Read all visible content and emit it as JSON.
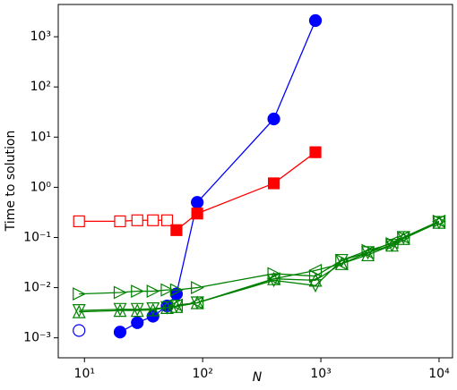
{
  "chart_data": {
    "type": "scatter-line",
    "xlabel": "N",
    "ylabel": "Time to solution",
    "xscale": "log",
    "yscale": "log",
    "xlim": [
      6,
      13000
    ],
    "ylim": [
      0.0004,
      4400
    ],
    "xticks": [
      {
        "value": 10,
        "label": "10¹"
      },
      {
        "value": 100,
        "label": "10²"
      },
      {
        "value": 1000,
        "label": "10³"
      },
      {
        "value": 10000,
        "label": "10⁴"
      }
    ],
    "yticks": [
      {
        "value": 0.001,
        "label": "10⁻³"
      },
      {
        "value": 0.01,
        "label": "10⁻²"
      },
      {
        "value": 0.1,
        "label": "10⁻¹"
      },
      {
        "value": 1,
        "label": "10⁰"
      },
      {
        "value": 10,
        "label": "10¹"
      },
      {
        "value": 100,
        "label": "10²"
      },
      {
        "value": 1000,
        "label": "10³"
      }
    ],
    "series": [
      {
        "color": "#0000ff",
        "marker": "o",
        "filled": false,
        "x": [
          9
        ],
        "values": [
          0.0014
        ]
      },
      {
        "color": "#0000ff",
        "marker": "o",
        "filled": true,
        "x": [
          20,
          28,
          38,
          50,
          60,
          90,
          400,
          900
        ],
        "values": [
          0.0013,
          0.002,
          0.0027,
          0.0043,
          0.0075,
          0.5,
          23,
          2100
        ]
      },
      {
        "color": "#ff0000",
        "marker": "s",
        "filled": false,
        "x": [
          9,
          20,
          28,
          38,
          50
        ],
        "values": [
          0.21,
          0.21,
          0.22,
          0.22,
          0.22
        ]
      },
      {
        "color": "#ff0000",
        "marker": "s",
        "filled": true,
        "x": [
          60,
          90,
          400,
          900
        ],
        "values": [
          0.14,
          0.3,
          1.2,
          5
        ]
      },
      {
        "color": "#008000",
        "marker": ">",
        "filled": false,
        "x": [
          9,
          20,
          28,
          38,
          50,
          60,
          90,
          400,
          900,
          1500,
          2500,
          4000,
          5000,
          10000
        ],
        "values": [
          0.0075,
          0.008,
          0.0085,
          0.0085,
          0.009,
          0.009,
          0.01,
          0.019,
          0.017,
          0.035,
          0.055,
          0.075,
          0.1,
          0.21
        ]
      },
      {
        "color": "#008000",
        "marker": "<",
        "filled": false,
        "x": [
          60,
          90,
          400,
          900,
          1500,
          2500,
          4000,
          5000,
          10000
        ],
        "values": [
          0.0045,
          0.005,
          0.015,
          0.022,
          0.03,
          0.05,
          0.08,
          0.1,
          0.21
        ]
      },
      {
        "color": "#008000",
        "marker": "v",
        "filled": false,
        "x": [
          9,
          20,
          28,
          38,
          50,
          60,
          90,
          400,
          900,
          1500,
          2500,
          4000,
          5000,
          10000
        ],
        "values": [
          0.0035,
          0.0037,
          0.0037,
          0.0038,
          0.004,
          0.0043,
          0.005,
          0.014,
          0.011,
          0.035,
          0.05,
          0.07,
          0.1,
          0.2
        ]
      },
      {
        "color": "#008000",
        "marker": "^",
        "filled": false,
        "x": [
          9,
          20,
          28,
          38,
          50,
          60,
          90,
          400,
          900,
          1500,
          2500,
          4000,
          5000,
          10000
        ],
        "values": [
          0.0033,
          0.0035,
          0.0035,
          0.0036,
          0.004,
          0.0042,
          0.005,
          0.015,
          0.014,
          0.03,
          0.045,
          0.07,
          0.095,
          0.2
        ]
      }
    ]
  }
}
